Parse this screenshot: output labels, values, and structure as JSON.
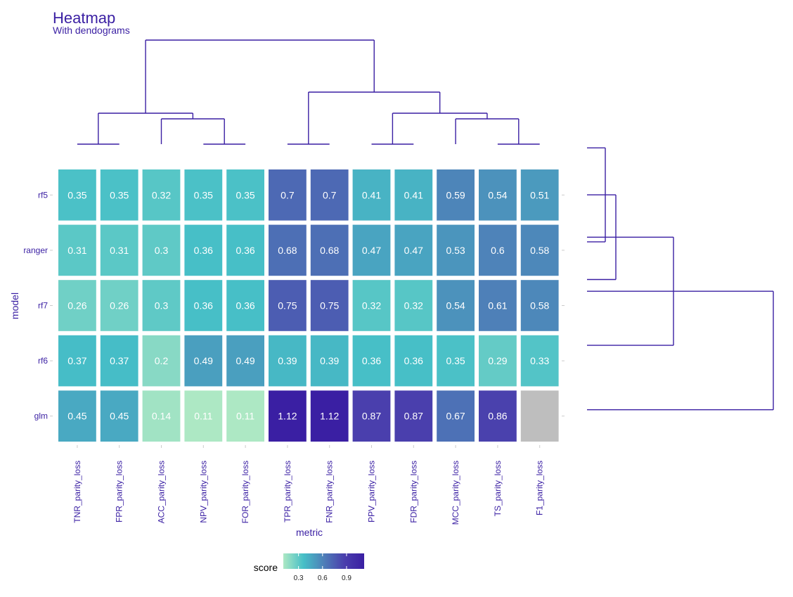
{
  "chart_data": {
    "type": "heatmap",
    "title": "Heatmap",
    "subtitle": "With dendograms",
    "xlabel": "metric",
    "ylabel": "model",
    "x_categories": [
      "TNR_parity_loss",
      "FPR_parity_loss",
      "ACC_parity_loss",
      "NPV_parity_loss",
      "FOR_parity_loss",
      "TPR_parity_loss",
      "FNR_parity_loss",
      "PPV_parity_loss",
      "FDR_parity_loss",
      "MCC_parity_loss",
      "TS_parity_loss",
      "F1_parity_loss"
    ],
    "y_categories": [
      "rf5",
      "ranger",
      "rf7",
      "rf6",
      "glm"
    ],
    "values": [
      [
        0.35,
        0.35,
        0.32,
        0.35,
        0.35,
        0.7,
        0.7,
        0.41,
        0.41,
        0.59,
        0.54,
        0.51
      ],
      [
        0.31,
        0.31,
        0.3,
        0.36,
        0.36,
        0.68,
        0.68,
        0.47,
        0.47,
        0.53,
        0.6,
        0.58
      ],
      [
        0.26,
        0.26,
        0.3,
        0.36,
        0.36,
        0.75,
        0.75,
        0.32,
        0.32,
        0.54,
        0.61,
        0.58
      ],
      [
        0.37,
        0.37,
        0.2,
        0.49,
        0.49,
        0.39,
        0.39,
        0.36,
        0.36,
        0.35,
        0.29,
        0.33
      ],
      [
        0.45,
        0.45,
        0.14,
        0.11,
        0.11,
        1.12,
        1.12,
        0.87,
        0.87,
        0.67,
        0.86,
        null
      ]
    ],
    "labels": [
      [
        "0.35",
        "0.35",
        "0.32",
        "0.35",
        "0.35",
        "0.7",
        "0.7",
        "0.41",
        "0.41",
        "0.59",
        "0.54",
        "0.51"
      ],
      [
        "0.31",
        "0.31",
        "0.3",
        "0.36",
        "0.36",
        "0.68",
        "0.68",
        "0.47",
        "0.47",
        "0.53",
        "0.6",
        "0.58"
      ],
      [
        "0.26",
        "0.26",
        "0.3",
        "0.36",
        "0.36",
        "0.75",
        "0.75",
        "0.32",
        "0.32",
        "0.54",
        "0.61",
        "0.58"
      ],
      [
        "0.37",
        "0.37",
        "0.2",
        "0.49",
        "0.49",
        "0.39",
        "0.39",
        "0.36",
        "0.36",
        "0.35",
        "0.29",
        "0.33"
      ],
      [
        "0.45",
        "0.45",
        "0.14",
        "0.11",
        "0.11",
        "1.12",
        "1.12",
        "0.87",
        "0.87",
        "0.67",
        "0.86",
        ""
      ]
    ],
    "na_color": "#bebebe",
    "colorscale": {
      "title": "score",
      "ticks": [
        "0.3",
        "0.6",
        "0.9"
      ],
      "tick_values": [
        0.3,
        0.6,
        0.9
      ],
      "range": [
        0.11,
        1.12
      ],
      "stops": [
        "#ade8c4",
        "#46bfc7",
        "#4e7fb8",
        "#4a3fad",
        "#3a1fa3"
      ]
    },
    "column_dendrogram": "(((TNR,FPR),(ACC,(NPV,FOR))),((TPR,FNR),((PPV,FDR),(MCC,(TS,F1)))))",
    "row_dendrogram": "((((rf5,ranger),rf7),rf6),glm)",
    "accent_color": "#3a1fa3"
  }
}
